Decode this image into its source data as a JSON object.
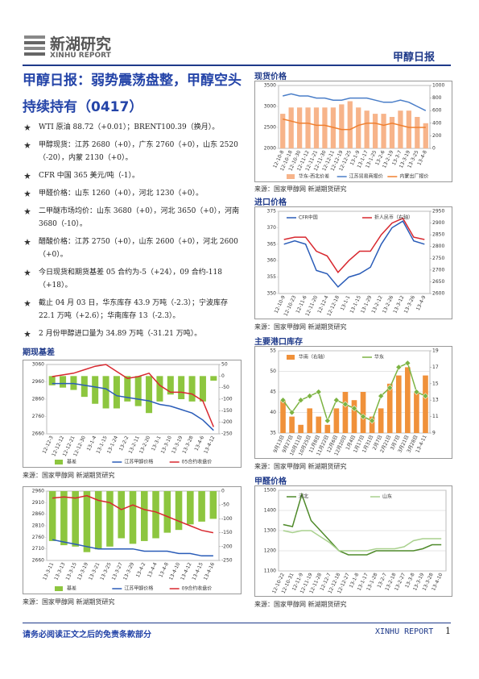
{
  "header": {
    "logo_cn": "新湖研究",
    "logo_en": "XINHU REPORT",
    "report_name": "甲醇日报"
  },
  "title": "甲醇日报：弱势震荡盘整，甲醇空头持续持有（0417）",
  "bullets": [
    "WTI 原油 88.72（+0.01）；BRENT100.39（换月）。",
    "甲醇现货：江苏 2680（+0），广东 2760（+0），山东 2520（-20），内蒙 2130（+0）。",
    "CFR 中国 365 美元/吨（-1）。",
    "甲醛价格：山东 1260（+0），河北 1230（+0）。",
    "二甲醚市场均价：山东 3680（+0），河北 3650（+0），河南 3680（-10）。",
    "醋酸价格：江苏 2750（+0），山东 2600（+0），河北 2600（+0）。",
    "今日现货和期货基差 05 合约为-5（+24），09 合约-118（+18）。",
    "截止 04 月 03 日，华东库存 43.9 万吨（-2.3）；宁波库存 22.1 万吨（+2.6）；华南库存 13（-2.3）。",
    "2 月份甲醇进口量为 34.89 万吨（-31.21 万吨）。"
  ],
  "footer": {
    "disclaimer": "请务必阅读正文之后的免责条款部分",
    "brand": "XINHU REPORT",
    "page": 1
  },
  "chart_data": [
    {
      "type": "combo",
      "heading": "期现基差",
      "source": "来源：国家甲醇网 新湖期货研究",
      "legend": "bottom",
      "grid": false,
      "categories": [
        "12-12-3",
        "12-12-12",
        "12-12-21",
        "12-12-30",
        "13-1-4",
        "13-1-15",
        "13-1-24",
        "13-2-2",
        "13-2-11",
        "13-2-20",
        "13-3-1",
        "13-3-10",
        "13-3-19",
        "13-3-28",
        "13-4-6",
        "13-4-12"
      ],
      "ylim": [
        2660,
        3060
      ],
      "yticks": [
        2660,
        2760,
        2860,
        2960,
        3060
      ],
      "y2lim": [
        -250,
        50
      ],
      "y2ticks": [
        -250,
        -200,
        -150,
        -100,
        -50,
        0,
        50
      ],
      "series": [
        {
          "name": "基差",
          "kind": "bar",
          "axis": "y2",
          "color": "#8dc63f",
          "values": [
            -40,
            -50,
            -60,
            -90,
            -120,
            -140,
            -140,
            -110,
            -130,
            -160,
            -110,
            -80,
            -100,
            -110,
            -110,
            -20
          ]
        },
        {
          "name": "江苏甲醇价格",
          "kind": "line",
          "color": "#2a5cb8",
          "values": [
            2950,
            2950,
            2950,
            2940,
            2930,
            2920,
            2880,
            2870,
            2860,
            2850,
            2830,
            2820,
            2800,
            2780,
            2740,
            2680
          ]
        },
        {
          "name": "05合约收盘价",
          "kind": "line",
          "color": "#d8282f",
          "values": [
            2990,
            3000,
            3010,
            3030,
            3050,
            3060,
            3020,
            2980,
            2990,
            3010,
            2940,
            2900,
            2900,
            2890,
            2850,
            2700
          ]
        }
      ]
    },
    {
      "type": "combo",
      "source": "来源：国家甲醇网 新湖期货研究",
      "legend": "bottom",
      "grid": false,
      "categories": [
        "13-3-11",
        "13-3-13",
        "13-3-15",
        "13-3-19",
        "13-3-21",
        "13-3-25",
        "13-3-27",
        "13-3-29",
        "13-4-2",
        "13-4-4",
        "13-4-8",
        "13-4-10",
        "13-4-12",
        "13-4-15",
        "13-4-16"
      ],
      "ylim": [
        2660,
        2960
      ],
      "yticks": [
        2660,
        2710,
        2760,
        2810,
        2860,
        2910,
        2960
      ],
      "y2lim": [
        -250,
        0
      ],
      "y2ticks": [
        -250,
        -200,
        -150,
        -100,
        -50,
        0
      ],
      "series": [
        {
          "name": "基差",
          "kind": "bar",
          "axis": "y2",
          "color": "#8dc63f",
          "values": [
            -180,
            -195,
            -200,
            -220,
            -210,
            -200,
            -170,
            -190,
            -180,
            -170,
            -150,
            -140,
            -120,
            -110,
            -100
          ]
        },
        {
          "name": "江苏甲醇价格",
          "kind": "line",
          "color": "#2a5cb8",
          "values": [
            2750,
            2740,
            2730,
            2720,
            2710,
            2710,
            2710,
            2710,
            2700,
            2700,
            2700,
            2690,
            2690,
            2680,
            2680
          ]
        },
        {
          "name": "09合约收盘价",
          "kind": "line",
          "color": "#d8282f",
          "values": [
            2930,
            2935,
            2930,
            2940,
            2920,
            2910,
            2880,
            2900,
            2880,
            2870,
            2850,
            2830,
            2810,
            2790,
            2780
          ]
        }
      ]
    },
    {
      "type": "combo",
      "heading": "现货价格",
      "source": "来源：国家甲醇网 新湖期货研究",
      "legend": "bottom",
      "grid": false,
      "categories": [
        "12-10-8",
        "12-10-18",
        "12-10-30",
        "12-11-12",
        "12-11-21",
        "12-11-30",
        "12-12-11",
        "12-12-19",
        "12-12-25",
        "13-1-9",
        "13-1-17",
        "13-1-25",
        "13-2-6",
        "13-2-19",
        "13-3-7",
        "13-3-19",
        "13-3-25",
        "13-4-8"
      ],
      "ylim": [
        2000,
        3500
      ],
      "yticks": [
        2000,
        2500,
        3000,
        3500
      ],
      "y2lim": [
        0,
        1000
      ],
      "y2ticks": [
        0,
        200,
        400,
        600,
        800,
        1000
      ],
      "series": [
        {
          "name": "华东-西北价差",
          "kind": "bar",
          "axis": "y2",
          "color": "#f7b48a",
          "values": [
            550,
            650,
            650,
            650,
            650,
            650,
            650,
            700,
            750,
            650,
            600,
            550,
            550,
            500,
            600,
            600,
            500,
            400
          ]
        },
        {
          "name": "江苏贸易商报价",
          "kind": "line",
          "color": "#4a7ec8",
          "values": [
            3250,
            3300,
            3250,
            3250,
            3200,
            3200,
            3150,
            3150,
            3200,
            3200,
            3200,
            3150,
            3100,
            3100,
            3150,
            3100,
            3000,
            2900
          ]
        },
        {
          "name": "内蒙出厂报价",
          "kind": "line",
          "color": "#f08030",
          "values": [
            2700,
            2650,
            2600,
            2600,
            2550,
            2550,
            2500,
            2450,
            2450,
            2550,
            2600,
            2600,
            2550,
            2600,
            2550,
            2500,
            2500,
            2500
          ]
        }
      ]
    },
    {
      "type": "combo",
      "heading": "进口价格",
      "source": "来源：国家甲醇网 新湖期货研究",
      "legend": "top",
      "grid": false,
      "categories": [
        "12-10-9",
        "12-10-23",
        "12-11-6",
        "12-11-20",
        "12-12-4",
        "12-12-18",
        "13-1-1",
        "13-1-15",
        "13-1-29",
        "13-2-12",
        "13-2-26",
        "13-3-12",
        "13-3-26",
        "13-4-9"
      ],
      "ylim": [
        350,
        375
      ],
      "yticks": [
        350,
        355,
        360,
        365,
        370,
        375
      ],
      "y2lim": [
        2600,
        2950
      ],
      "y2ticks": [
        2600,
        2650,
        2700,
        2750,
        2800,
        2850,
        2900,
        2950
      ],
      "series": [
        {
          "name": "CFR中国",
          "kind": "line",
          "color": "#2a5cb8",
          "values": [
            365,
            366,
            365,
            357,
            356,
            352,
            355,
            356,
            358,
            365,
            370,
            372,
            366,
            365
          ]
        },
        {
          "name": "折人民币（右轴）",
          "kind": "line",
          "axis": "y2",
          "color": "#d8282f",
          "values": [
            2830,
            2840,
            2840,
            2780,
            2760,
            2690,
            2740,
            2780,
            2780,
            2850,
            2900,
            2920,
            2840,
            2830
          ]
        }
      ]
    },
    {
      "type": "combo",
      "heading": "主要港口库存",
      "source": "来源：国家甲醇网 新湖期货研究",
      "legend": "top",
      "grid": true,
      "categories": [
        "9月13日",
        "9月27日",
        "10月11日",
        "10月25日",
        "11月8日",
        "11月22日",
        "12月6日",
        "12月20日",
        "1月4日",
        "1月17日",
        "1月31日",
        "2月7日",
        "2月21日",
        "3月7日",
        "3月21日",
        "3月28日",
        "13-4-11"
      ],
      "ylim": [
        35,
        55
      ],
      "yticks": [
        35,
        40,
        45,
        50,
        55
      ],
      "y2lim": [
        9,
        19
      ],
      "y2ticks": [
        9,
        11,
        13,
        15,
        17,
        19
      ],
      "series": [
        {
          "name": "华南（右轴）",
          "kind": "bar",
          "axis": "y2",
          "color": "#f0913a",
          "values": [
            13,
            11,
            10,
            12,
            11,
            10,
            12,
            14,
            13,
            14,
            11,
            12,
            15,
            16,
            17,
            14,
            16
          ]
        },
        {
          "name": "华东",
          "kind": "line",
          "color": "#7cb342",
          "values": [
            43,
            40,
            43,
            44,
            45,
            38,
            43,
            42,
            41,
            39,
            38,
            44,
            46,
            51,
            52,
            45,
            44
          ]
        }
      ]
    },
    {
      "type": "line",
      "heading": "甲醛价格",
      "source": "来源：国家甲醇网 新湖期货研究",
      "legend": "top",
      "grid": true,
      "categories": [
        "12-10-22",
        "12-10-31",
        "12-11-9",
        "12-11-19",
        "12-11-28",
        "12-12-7",
        "12-12-18",
        "12-12-27",
        "13-1-8",
        "13-1-17",
        "13-1-28",
        "13-2-7",
        "13-2-18",
        "13-2-27",
        "13-3-8",
        "13-3-19",
        "13-3-28",
        "13-4-10"
      ],
      "ylim": [
        1100,
        1500
      ],
      "yticks": [
        1100,
        1200,
        1300,
        1400,
        1500
      ],
      "series": [
        {
          "name": "河北",
          "kind": "line",
          "color": "#4f8a2a",
          "values": [
            1330,
            1320,
            1480,
            1350,
            1300,
            1250,
            1200,
            1180,
            1180,
            1180,
            1200,
            1200,
            1200,
            1200,
            1200,
            1210,
            1230,
            1230
          ]
        },
        {
          "name": "山东",
          "kind": "line",
          "color": "#a9d18e",
          "values": [
            1300,
            1290,
            1300,
            1300,
            1270,
            1240,
            1200,
            1200,
            1200,
            1200,
            1210,
            1210,
            1210,
            1220,
            1250,
            1260,
            1260,
            1260
          ]
        }
      ]
    }
  ]
}
